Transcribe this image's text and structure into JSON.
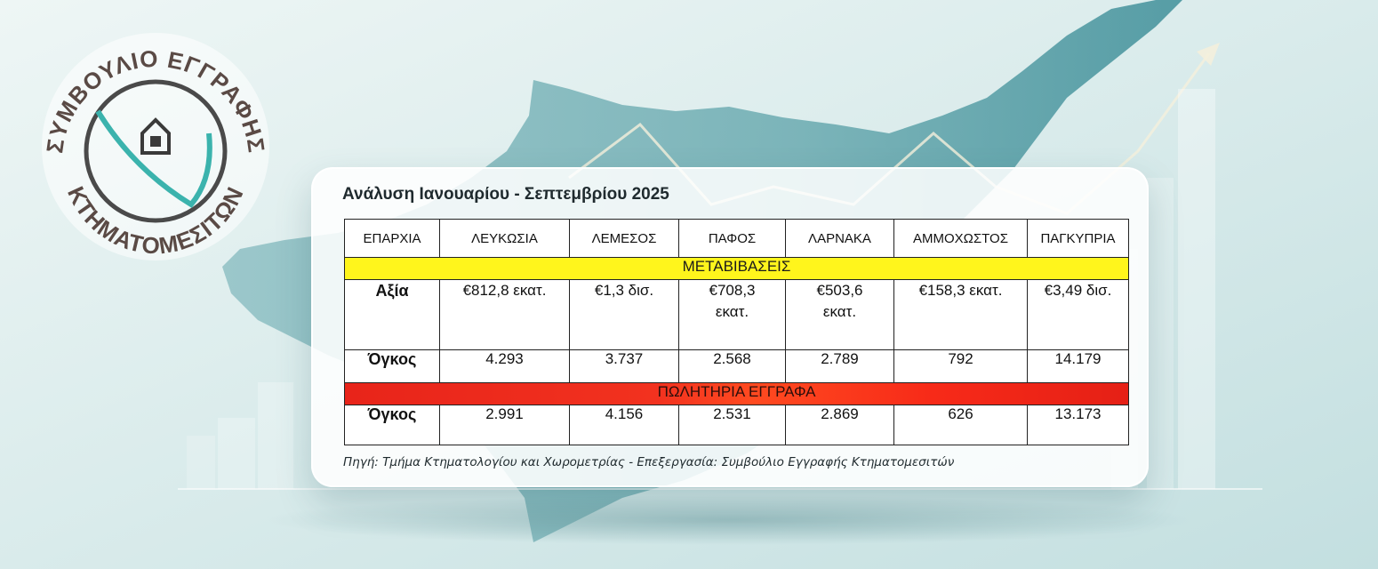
{
  "logo": {
    "top_text": "ΣΥΜΒΟΥΛΙΟ ΕΓΓΡΑΦΗΣ",
    "bottom_text": "ΚΤΗΜΑΤΟΜΕΣΙΤΩΝ",
    "icon": "house-icon",
    "colors": {
      "ring": "#4a4a4a",
      "accent": "#3bb3ad",
      "text": "#5a4a45"
    }
  },
  "card": {
    "title": "Ανάλυση Ιανουαρίου - Σεπτεμβρίου 2025",
    "source": "Πηγή: Τμήμα Κτηματολογίου και Χωρομετρίας - Επεξεργασία: Συμβούλιο Εγγραφής Κτηματομεσιτών"
  },
  "table": {
    "headers": [
      "ΕΠΑΡΧΙΑ",
      "ΛΕΥΚΩΣΙΑ",
      "ΛΕΜΕΣΟΣ",
      "ΠΑΦΟΣ",
      "ΛΑΡΝΑΚΑ",
      "ΑΜΜΟΧΩΣΤΟΣ",
      "ΠΑΓΚΥΠΡΙΑ"
    ],
    "transfers": {
      "section_label": "ΜΕΤΑΒΙΒΑΣΕΙΣ",
      "value_label": "Αξία",
      "values": [
        "€812,8 εκατ.",
        "€1,3 δισ.",
        "€708,3\nεκατ.",
        "€503,6\nεκατ.",
        "€158,3 εκατ.",
        "€3,49 δισ."
      ],
      "volume_label": "Όγκος",
      "volumes": [
        "4.293",
        "3.737",
        "2.568",
        "2.789",
        "792",
        "14.179"
      ]
    },
    "sales_documents": {
      "section_label": "ΠΩΛΗΤΗΡΙΑ ΕΓΓΡΑΦΑ",
      "volume_label": "Όγκος",
      "volumes": [
        "2.991",
        "4.156",
        "2.531",
        "2.869",
        "626",
        "13.173"
      ]
    }
  },
  "colors": {
    "background": "#e6f1f1",
    "island": "#6aaab0",
    "band_yellow": "#fff51c",
    "band_red": "#f2321f"
  }
}
